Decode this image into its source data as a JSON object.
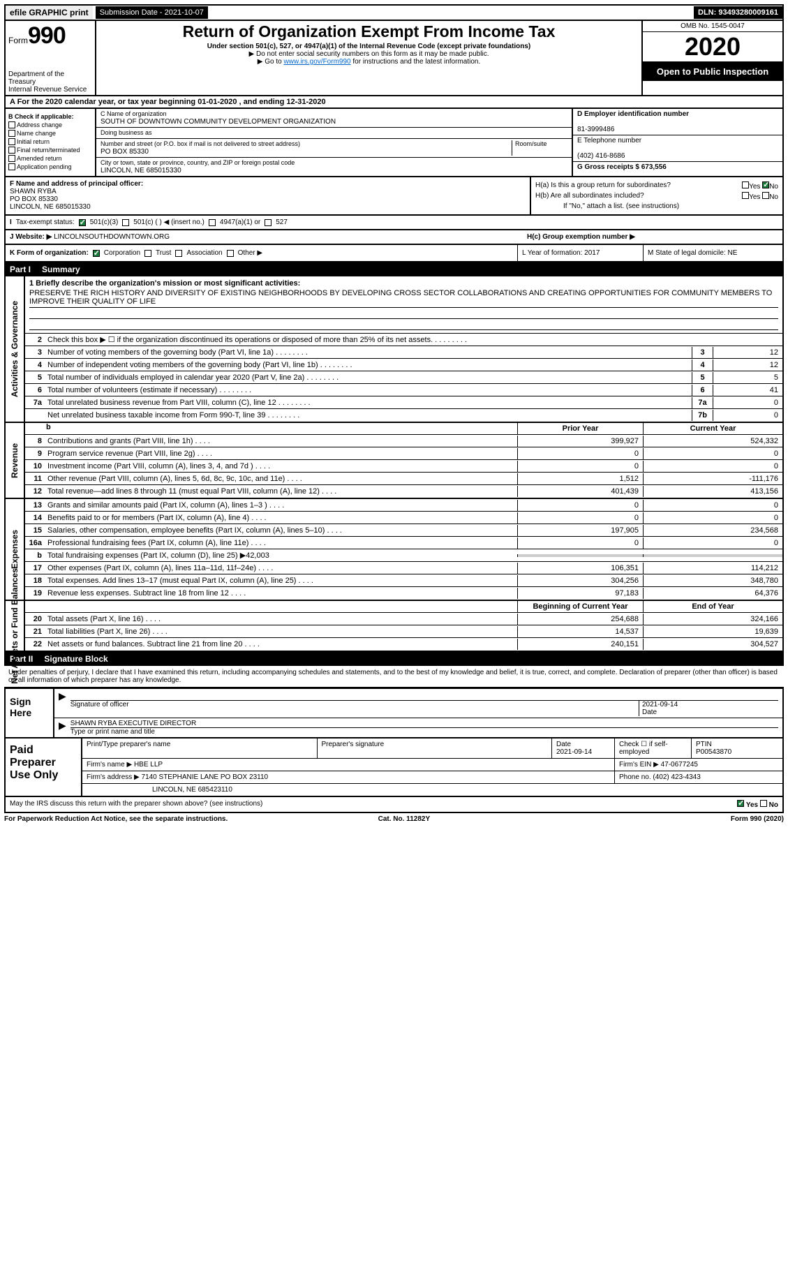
{
  "top": {
    "efile": "efile GRAPHIC print",
    "submission": "Submission Date - 2021-10-07",
    "dln": "DLN: 93493280009161"
  },
  "header": {
    "form_prefix": "Form",
    "form_number": "990",
    "dept": "Department of the Treasury",
    "irs": "Internal Revenue Service",
    "title": "Return of Organization Exempt From Income Tax",
    "subtitle": "Under section 501(c), 527, or 4947(a)(1) of the Internal Revenue Code (except private foundations)",
    "note1": "▶ Do not enter social security numbers on this form as it may be made public.",
    "note2_pre": "▶ Go to ",
    "note2_link": "www.irs.gov/Form990",
    "note2_post": " for instructions and the latest information.",
    "omb": "OMB No. 1545-0047",
    "year": "2020",
    "open": "Open to Public Inspection"
  },
  "row_a": "A For the 2020 calendar year, or tax year beginning 01-01-2020    , and ending 12-31-2020",
  "sec_b": {
    "label": "B Check if applicable:",
    "items": [
      "Address change",
      "Name change",
      "Initial return",
      "Final return/terminated",
      "Amended return",
      "Application pending"
    ]
  },
  "sec_c": {
    "name_lbl": "C Name of organization",
    "name": "SOUTH OF DOWNTOWN COMMUNITY DEVELOPMENT ORGANIZATION",
    "dba": "Doing business as",
    "addr_lbl": "Number and street (or P.O. box if mail is not delivered to street address)",
    "room": "Room/suite",
    "addr": "PO BOX 85330",
    "city_lbl": "City or town, state or province, country, and ZIP or foreign postal code",
    "city": "LINCOLN, NE  685015330"
  },
  "sec_d": {
    "lbl": "D Employer identification number",
    "val": "81-3999486"
  },
  "sec_e": {
    "lbl": "E Telephone number",
    "val": "(402) 416-8686"
  },
  "sec_g": {
    "lbl": "G Gross receipts $ 673,556"
  },
  "sec_f": {
    "lbl": "F  Name and address of principal officer:",
    "name": "SHAWN RYBA",
    "addr": "PO BOX 85330",
    "city": "LINCOLN, NE  685015330"
  },
  "sec_h": {
    "ha": "H(a)  Is this a group return for subordinates?",
    "hb": "H(b)  Are all subordinates included?",
    "hb_note": "If \"No,\" attach a list. (see instructions)",
    "hc": "H(c)  Group exemption number ▶",
    "yes": "Yes",
    "no": "No"
  },
  "tax": {
    "lbl": "Tax-exempt status:",
    "t1": "501(c)(3)",
    "t2": "501(c) (  ) ◀ (insert no.)",
    "t3": "4947(a)(1) or",
    "t4": "527"
  },
  "web": {
    "lbl": "J  Website: ▶",
    "val": "LINCOLNSOUTHDOWNTOWN.ORG"
  },
  "row_k": {
    "lbl": "K Form of organization:",
    "corp": "Corporation",
    "trust": "Trust",
    "assoc": "Association",
    "other": "Other ▶",
    "l": "L Year of formation: 2017",
    "m": "M State of legal domicile: NE"
  },
  "part1": {
    "pn": "Part I",
    "title": "Summary"
  },
  "mission": {
    "q": "1  Briefly describe the organization's mission or most significant activities:",
    "text": "PRESERVE THE RICH HISTORY AND DIVERSITY OF EXISTING NEIGHBORHOODS BY DEVELOPING CROSS SECTOR COLLABORATIONS AND CREATING OPPORTUNITIES FOR COMMUNITY MEMBERS TO IMPROVE THEIR QUALITY OF LIFE"
  },
  "gov": [
    {
      "n": "2",
      "d": "Check this box ▶ ☐  if the organization discontinued its operations or disposed of more than 25% of its net assets."
    },
    {
      "n": "3",
      "d": "Number of voting members of the governing body (Part VI, line 1a)",
      "sn": "3",
      "v": "12"
    },
    {
      "n": "4",
      "d": "Number of independent voting members of the governing body (Part VI, line 1b)",
      "sn": "4",
      "v": "12"
    },
    {
      "n": "5",
      "d": "Total number of individuals employed in calendar year 2020 (Part V, line 2a)",
      "sn": "5",
      "v": "5"
    },
    {
      "n": "6",
      "d": "Total number of volunteers (estimate if necessary)",
      "sn": "6",
      "v": "41"
    },
    {
      "n": "7a",
      "d": "Total unrelated business revenue from Part VIII, column (C), line 12",
      "sn": "7a",
      "v": "0"
    },
    {
      "n": "",
      "d": "Net unrelated business taxable income from Form 990-T, line 39",
      "sn": "7b",
      "v": "0"
    }
  ],
  "cols": {
    "prior": "Prior Year",
    "current": "Current Year",
    "begin": "Beginning of Current Year",
    "end": "End of Year"
  },
  "rev": [
    {
      "n": "8",
      "d": "Contributions and grants (Part VIII, line 1h)",
      "p": "399,927",
      "c": "524,332"
    },
    {
      "n": "9",
      "d": "Program service revenue (Part VIII, line 2g)",
      "p": "0",
      "c": "0"
    },
    {
      "n": "10",
      "d": "Investment income (Part VIII, column (A), lines 3, 4, and 7d )",
      "p": "0",
      "c": "0"
    },
    {
      "n": "11",
      "d": "Other revenue (Part VIII, column (A), lines 5, 6d, 8c, 9c, 10c, and 11e)",
      "p": "1,512",
      "c": "-111,176"
    },
    {
      "n": "12",
      "d": "Total revenue—add lines 8 through 11 (must equal Part VIII, column (A), line 12)",
      "p": "401,439",
      "c": "413,156"
    }
  ],
  "exp": [
    {
      "n": "13",
      "d": "Grants and similar amounts paid (Part IX, column (A), lines 1–3 )",
      "p": "0",
      "c": "0"
    },
    {
      "n": "14",
      "d": "Benefits paid to or for members (Part IX, column (A), line 4)",
      "p": "0",
      "c": "0"
    },
    {
      "n": "15",
      "d": "Salaries, other compensation, employee benefits (Part IX, column (A), lines 5–10)",
      "p": "197,905",
      "c": "234,568"
    },
    {
      "n": "16a",
      "d": "Professional fundraising fees (Part IX, column (A), line 11e)",
      "p": "0",
      "c": "0"
    },
    {
      "n": "b",
      "d": "Total fundraising expenses (Part IX, column (D), line 25) ▶42,003",
      "gray": true
    },
    {
      "n": "17",
      "d": "Other expenses (Part IX, column (A), lines 11a–11d, 11f–24e)",
      "p": "106,351",
      "c": "114,212"
    },
    {
      "n": "18",
      "d": "Total expenses. Add lines 13–17 (must equal Part IX, column (A), line 25)",
      "p": "304,256",
      "c": "348,780"
    },
    {
      "n": "19",
      "d": "Revenue less expenses. Subtract line 18 from line 12",
      "p": "97,183",
      "c": "64,376"
    }
  ],
  "net": [
    {
      "n": "20",
      "d": "Total assets (Part X, line 16)",
      "p": "254,688",
      "c": "324,166"
    },
    {
      "n": "21",
      "d": "Total liabilities (Part X, line 26)",
      "p": "14,537",
      "c": "19,639"
    },
    {
      "n": "22",
      "d": "Net assets or fund balances. Subtract line 21 from line 20",
      "p": "240,151",
      "c": "304,527"
    }
  ],
  "sides": {
    "gov": "Activities & Governance",
    "rev": "Revenue",
    "exp": "Expenses",
    "net": "Net Assets or Fund Balances"
  },
  "part2": {
    "pn": "Part II",
    "title": "Signature Block"
  },
  "sig_intro": "Under penalties of perjury, I declare that I have examined this return, including accompanying schedules and statements, and to the best of my knowledge and belief, it is true, correct, and complete. Declaration of preparer (other than officer) is based on all information of which preparer has any knowledge.",
  "sign": {
    "left": "Sign Here",
    "sig_of": "Signature of officer",
    "date": "Date",
    "date_val": "2021-09-14",
    "name": "SHAWN RYBA  EXECUTIVE DIRECTOR",
    "type": "Type or print name and title"
  },
  "paid": {
    "left": "Paid Preparer Use Only",
    "h1": "Print/Type preparer's name",
    "h2": "Preparer's signature",
    "h3": "Date",
    "h3v": "2021-09-14",
    "h4": "Check ☐ if self-employed",
    "h5": "PTIN",
    "h5v": "P00543870",
    "firm": "Firm's name    ▶ HBE LLP",
    "ein": "Firm's EIN ▶ 47-0677245",
    "addr": "Firm's address ▶ 7140 STEPHANIE LANE PO BOX 23110",
    "addr2": "LINCOLN, NE  685423110",
    "phone": "Phone no. (402) 423-4343"
  },
  "may": "May the IRS discuss this return with the preparer shown above? (see instructions)",
  "footer": {
    "left": "For Paperwork Reduction Act Notice, see the separate instructions.",
    "mid": "Cat. No. 11282Y",
    "right": "Form 990 (2020)"
  }
}
